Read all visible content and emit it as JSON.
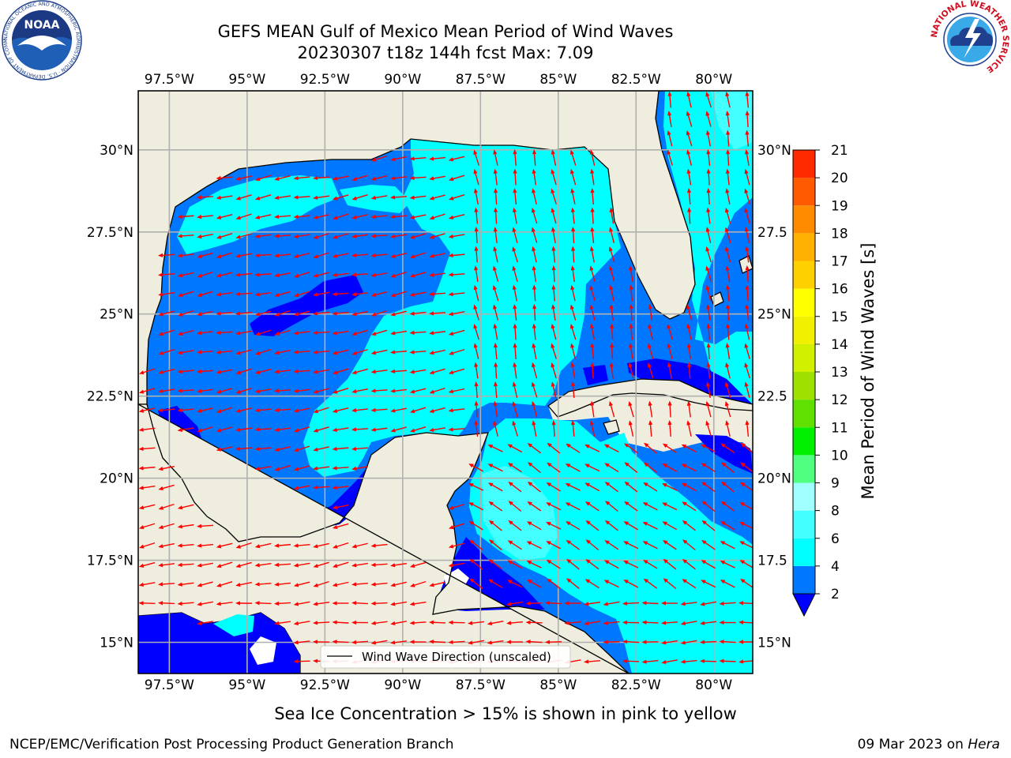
{
  "title": {
    "line1": "GEFS MEAN Gulf of Mexico Mean Period of Wind Waves",
    "line2": "20230307 t18z 144h fcst   Max: 7.09"
  },
  "logos": {
    "noaa_text": "NOAA",
    "noaa_ring_text": "NATIONAL OCEANIC AND ATMOSPHERIC ADMINISTRATION · U.S. DEPARTMENT OF COMMERCE",
    "nws_ring_text": "NATIONAL WEATHER SERVICE"
  },
  "map": {
    "lon_range": [
      -98.5,
      -78.75
    ],
    "lat_range": [
      14.05,
      31.8
    ],
    "lon_ticks": [
      "97.5°W",
      "95°W",
      "92.5°W",
      "90°W",
      "87.5°W",
      "85°W",
      "82.5°W",
      "80°W"
    ],
    "lon_tick_values": [
      -97.5,
      -95,
      -92.5,
      -90,
      -87.5,
      -85,
      -82.5,
      -80
    ],
    "lat_ticks_left": [
      "30°N",
      "27.5°N",
      "25°N",
      "22.5°N",
      "20°N",
      "17.5°N",
      "15°N"
    ],
    "lat_ticks_right": [
      "30°N",
      "27.5",
      "25°N",
      "22.5",
      "20°N",
      "17.5",
      "15°N"
    ],
    "lat_tick_values": [
      30,
      27.5,
      25,
      22.5,
      20,
      17.5,
      15
    ],
    "grid": true,
    "land_color": "#efedde",
    "coast_color": "#000000",
    "arrow_color": "#ff0000",
    "legend_label": "Wind Wave Direction (unscaled)",
    "legend_placement": "bottom-center"
  },
  "colorbar": {
    "label": "Mean Period of Wind Waves [s]",
    "tick_labels": [
      "2",
      "4",
      "6",
      "8",
      "9",
      "10",
      "11",
      "12",
      "13",
      "14",
      "15",
      "16",
      "17",
      "18",
      "19",
      "20",
      "21"
    ],
    "colors": [
      "#0077ff",
      "#00ffff",
      "#44ffff",
      "#a0ffff",
      "#50ff80",
      "#00ee00",
      "#60e000",
      "#a0e000",
      "#d0f000",
      "#f0f000",
      "#ffff00",
      "#ffd000",
      "#ffb000",
      "#ff8c00",
      "#ff5a00",
      "#ff2a00",
      "#ff0000"
    ],
    "under_color": "#0000ff"
  },
  "notes": {
    "ice": "Sea Ice Concentration > 15% is shown in pink to yellow",
    "footer_left": "NCEP/EMC/Verification Post Processing Product Generation Branch",
    "footer_date": "09 Mar 2023 on",
    "footer_machine": "Hera"
  }
}
